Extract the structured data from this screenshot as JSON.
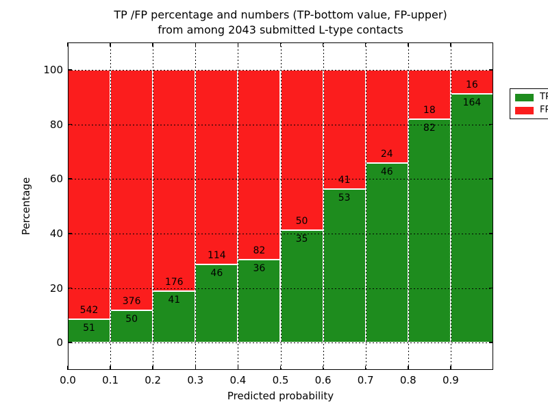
{
  "title": {
    "line1": "TP /FP percentage and numbers (TP-bottom value, FP-upper)",
    "line2": "from among 2043 submitted L-type contacts"
  },
  "chart_data": {
    "type": "bar",
    "stacked": true,
    "normalized": "each bin scaled to 100%",
    "total_contacts": 2043,
    "bin_edges": [
      0.0,
      0.1,
      0.2,
      0.3,
      0.4,
      0.5,
      0.6,
      0.7,
      0.8,
      0.9,
      1.0
    ],
    "xticks": [
      "0.0",
      "0.1",
      "0.2",
      "0.3",
      "0.4",
      "0.5",
      "0.6",
      "0.7",
      "0.8",
      "0.9"
    ],
    "yticks": [
      0,
      20,
      40,
      60,
      80,
      100
    ],
    "xlim": [
      0.0,
      1.0
    ],
    "ylim": [
      -10,
      110
    ],
    "xlabel": "Predicted probability",
    "ylabel": "Percentage",
    "grid": "dotted black, on",
    "legend_position": "upper right",
    "bar_edge_color": "#ffffff",
    "series": [
      {
        "name": "TP",
        "color": "#1e8c1e",
        "values": [
          51,
          50,
          41,
          46,
          36,
          35,
          53,
          46,
          82,
          164
        ]
      },
      {
        "name": "FP",
        "color": "#fb1d1d",
        "values": [
          542,
          376,
          176,
          114,
          82,
          50,
          41,
          24,
          18,
          16
        ]
      }
    ],
    "tp_percent": [
      8.6,
      11.74,
      18.89,
      28.75,
      30.51,
      41.18,
      56.38,
      65.71,
      82.0,
      91.11
    ]
  }
}
